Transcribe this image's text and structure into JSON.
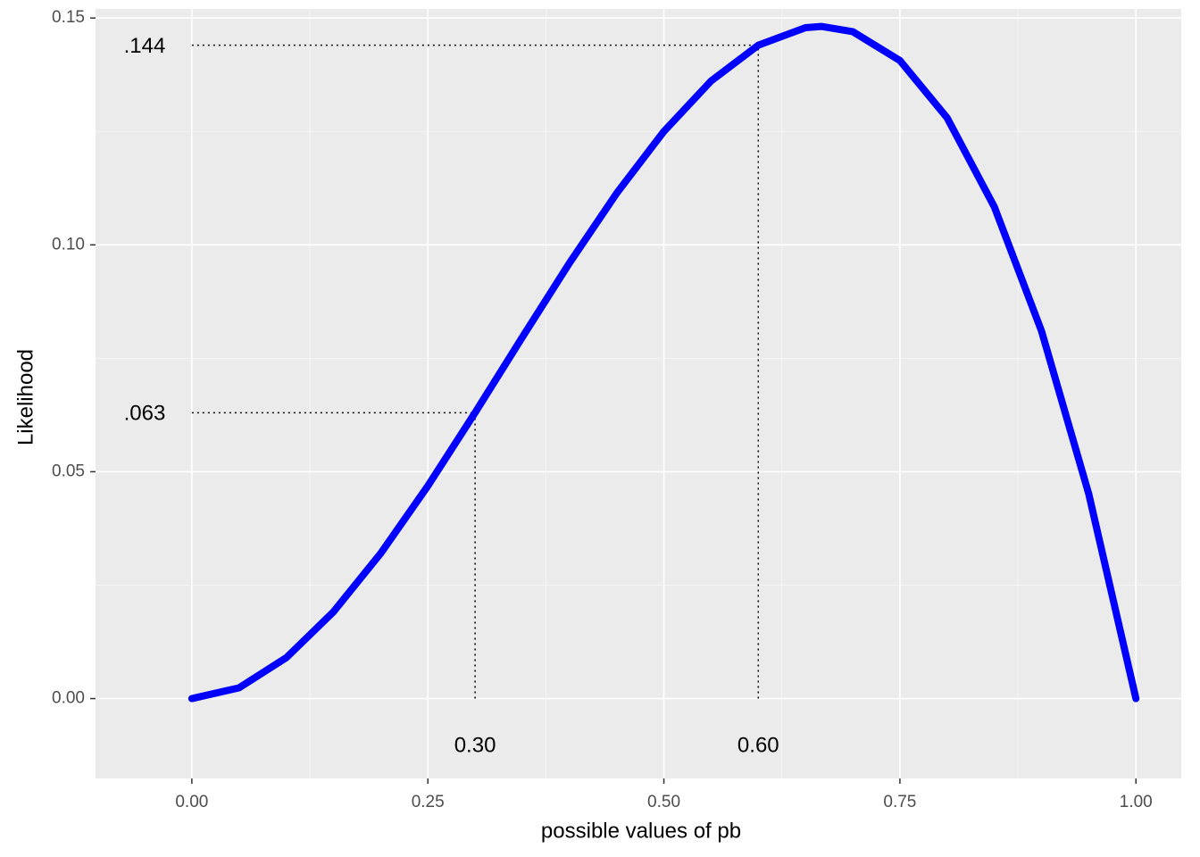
{
  "chart_data": {
    "type": "line",
    "x_label": "possible values of pb",
    "y_label": "Likelihood",
    "x": [
      0,
      0.05,
      0.1,
      0.15,
      0.2,
      0.25,
      0.3,
      0.35,
      0.4,
      0.45,
      0.5,
      0.55,
      0.6,
      0.65,
      0.6667,
      0.7,
      0.75,
      0.8,
      0.85,
      0.9,
      0.95,
      1
    ],
    "series": [
      {
        "color": "#0000ff",
        "values": [
          0,
          0.002375,
          0.009,
          0.019125,
          0.032,
          0.046875,
          0.063,
          0.079625,
          0.096,
          0.111375,
          0.125,
          0.136125,
          0.144,
          0.147875,
          0.148148,
          0.147,
          0.140625,
          0.128,
          0.108375,
          0.081,
          0.045125,
          0
        ]
      }
    ],
    "xlim": [
      -0.102,
      1.048
    ],
    "ylim": [
      -0.0176,
      0.152
    ],
    "xticks": [
      {
        "value": 0,
        "label": "0.00"
      },
      {
        "value": 0.25,
        "label": "0.25"
      },
      {
        "value": 0.5,
        "label": "0.50"
      },
      {
        "value": 0.75,
        "label": "0.75"
      },
      {
        "value": 1,
        "label": "1.00"
      }
    ],
    "yticks": [
      {
        "value": 0,
        "label": "0.00"
      },
      {
        "value": 0.05,
        "label": "0.05"
      },
      {
        "value": 0.1,
        "label": "0.10"
      },
      {
        "value": 0.15,
        "label": "0.15"
      }
    ],
    "xminor": [
      0.125,
      0.375,
      0.625,
      0.875
    ],
    "yminor": [
      0.025,
      0.075,
      0.125
    ],
    "grid": true,
    "annotations": [
      {
        "x": 0.3,
        "y": 0.063,
        "x_label": "0.30",
        "y_label": ".063"
      },
      {
        "x": 0.6,
        "y": 0.144,
        "x_label": "0.60",
        "y_label": ".144"
      }
    ]
  }
}
